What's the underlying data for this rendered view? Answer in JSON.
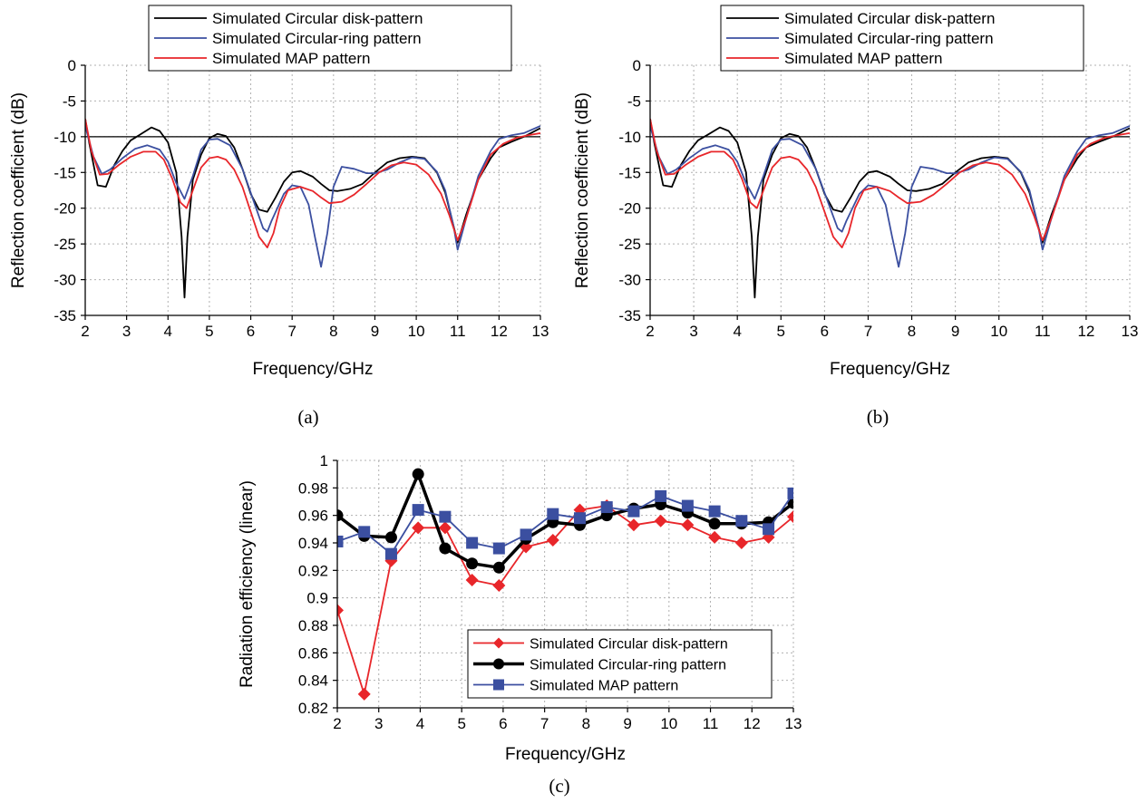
{
  "colors": {
    "disk": "#000000",
    "ring": "#3b4fa0",
    "map": "#e8262a",
    "grid": "#b0b0b0",
    "reference_line": "#000000"
  },
  "chart_data": [
    {
      "panel": "(a)",
      "type": "line",
      "xlabel": "Frequency/GHz",
      "ylabel": "Reflection coefficient (dB)",
      "xlim": [
        2,
        13
      ],
      "ylim": [
        -35,
        0
      ],
      "xticks": [
        2,
        3,
        4,
        5,
        6,
        7,
        8,
        9,
        10,
        11,
        12,
        13
      ],
      "yticks": [
        0,
        -5,
        -10,
        -15,
        -20,
        -25,
        -30,
        -35
      ],
      "grid": true,
      "reference_line": -10,
      "legend_position": "top",
      "series": [
        {
          "name": "Simulated Circular disk-pattern",
          "color_key": "disk",
          "x": [
            2,
            2.1,
            2.3,
            2.5,
            2.7,
            2.9,
            3.1,
            3.3,
            3.6,
            3.8,
            4.0,
            4.2,
            4.33,
            4.4,
            4.47,
            4.6,
            4.8,
            5.0,
            5.2,
            5.4,
            5.6,
            5.8,
            6.0,
            6.2,
            6.4,
            6.6,
            6.8,
            7.0,
            7.2,
            7.5,
            7.7,
            7.9,
            8.1,
            8.4,
            8.7,
            9.0,
            9.3,
            9.6,
            9.9,
            10.2,
            10.5,
            10.7,
            10.9,
            11.0,
            11.2,
            11.5,
            11.8,
            12.0,
            12.3,
            12.6,
            13.0
          ],
          "y": [
            -7.5,
            -11,
            -16.8,
            -17,
            -14,
            -12,
            -10.5,
            -9.8,
            -8.7,
            -9.2,
            -10.8,
            -15,
            -24,
            -32.5,
            -24,
            -16,
            -12.5,
            -10.2,
            -9.6,
            -9.9,
            -11.5,
            -14.5,
            -18,
            -20.2,
            -20.5,
            -18.5,
            -16.3,
            -15,
            -14.8,
            -15.6,
            -16.6,
            -17.5,
            -17.6,
            -17.3,
            -16.6,
            -15,
            -13.6,
            -13,
            -12.8,
            -13,
            -15,
            -17.8,
            -22.5,
            -24.8,
            -21,
            -16,
            -13,
            -11.5,
            -10.7,
            -10,
            -8.8
          ]
        },
        {
          "name": "Simulated Circular-ring pattern",
          "color_key": "ring",
          "x": [
            2,
            2.2,
            2.4,
            2.6,
            2.9,
            3.2,
            3.5,
            3.8,
            4.0,
            4.2,
            4.4,
            4.6,
            4.8,
            5.0,
            5.2,
            5.5,
            5.8,
            6.1,
            6.3,
            6.4,
            6.5,
            6.8,
            7.0,
            7.2,
            7.4,
            7.55,
            7.7,
            7.85,
            8.0,
            8.2,
            8.5,
            8.8,
            9.0,
            9.3,
            9.6,
            9.9,
            10.2,
            10.5,
            10.7,
            10.9,
            11.0,
            11.2,
            11.5,
            11.8,
            12.0,
            12.3,
            12.6,
            13.0
          ],
          "y": [
            -8.5,
            -12.8,
            -15.2,
            -14.6,
            -13,
            -11.7,
            -11.2,
            -11.8,
            -13.5,
            -16.5,
            -18.7,
            -15.5,
            -11.8,
            -10.4,
            -10.3,
            -11.2,
            -14.5,
            -19.5,
            -22.8,
            -23.3,
            -21.8,
            -18,
            -16.8,
            -17,
            -19.5,
            -24,
            -28.2,
            -23.5,
            -17,
            -14.2,
            -14.5,
            -15.1,
            -15.1,
            -14.6,
            -13.6,
            -12.9,
            -13.1,
            -14.9,
            -17.5,
            -22.5,
            -25.8,
            -21.5,
            -15.5,
            -12,
            -10.3,
            -9.8,
            -9.5,
            -8.5
          ]
        },
        {
          "name": "Simulated MAP pattern",
          "color_key": "map",
          "x": [
            2,
            2.15,
            2.35,
            2.55,
            2.8,
            3.1,
            3.4,
            3.7,
            3.9,
            4.1,
            4.3,
            4.45,
            4.6,
            4.8,
            5.0,
            5.2,
            5.4,
            5.6,
            5.8,
            6.0,
            6.2,
            6.4,
            6.55,
            6.7,
            6.9,
            7.2,
            7.5,
            7.7,
            7.9,
            8.2,
            8.5,
            8.8,
            9.1,
            9.4,
            9.7,
            10.0,
            10.3,
            10.6,
            10.8,
            11.0,
            11.2,
            11.5,
            11.8,
            12.1,
            12.4,
            12.7,
            13.0
          ],
          "y": [
            -7.5,
            -12,
            -15.3,
            -15.2,
            -14,
            -12.8,
            -12.1,
            -12.1,
            -13.2,
            -15.8,
            -19.2,
            -20,
            -17.5,
            -14.3,
            -13,
            -12.8,
            -13.2,
            -14.6,
            -17,
            -20.5,
            -24,
            -25.5,
            -23.5,
            -20,
            -17.5,
            -17,
            -17.6,
            -18.5,
            -19.3,
            -19.1,
            -18.1,
            -16.6,
            -15,
            -14,
            -13.6,
            -13.9,
            -15.3,
            -18,
            -21,
            -24.5,
            -21.5,
            -16,
            -12.5,
            -11,
            -10.2,
            -9.8,
            -9.5
          ]
        }
      ]
    },
    {
      "panel": "(b)",
      "type": "line",
      "xlabel": "Frequency/GHz",
      "ylabel": "Reflection coefficient (dB)",
      "xlim": [
        2,
        13
      ],
      "ylim": [
        -35,
        0
      ],
      "xticks": [
        2,
        3,
        4,
        5,
        6,
        7,
        8,
        9,
        10,
        11,
        12,
        13
      ],
      "yticks": [
        0,
        -5,
        -10,
        -15,
        -20,
        -25,
        -30,
        -35
      ],
      "grid": true,
      "reference_line": -10,
      "legend_position": "top",
      "series": [
        {
          "name": "Simulated Circular disk-pattern",
          "color_key": "disk",
          "x": [
            2,
            2.1,
            2.3,
            2.5,
            2.7,
            2.9,
            3.1,
            3.3,
            3.6,
            3.8,
            4.0,
            4.2,
            4.33,
            4.4,
            4.47,
            4.6,
            4.8,
            5.0,
            5.2,
            5.4,
            5.6,
            5.8,
            6.0,
            6.2,
            6.4,
            6.6,
            6.8,
            7.0,
            7.2,
            7.5,
            7.7,
            7.9,
            8.1,
            8.4,
            8.7,
            9.0,
            9.3,
            9.6,
            9.9,
            10.2,
            10.5,
            10.7,
            10.9,
            11.0,
            11.2,
            11.5,
            11.8,
            12.0,
            12.3,
            12.6,
            13.0
          ],
          "y": [
            -7.5,
            -11,
            -16.8,
            -17,
            -14,
            -12,
            -10.5,
            -9.8,
            -8.7,
            -9.2,
            -10.8,
            -15,
            -24,
            -32.5,
            -24,
            -16,
            -12.5,
            -10.2,
            -9.6,
            -9.9,
            -11.5,
            -14.5,
            -18,
            -20.2,
            -20.5,
            -18.5,
            -16.3,
            -15,
            -14.8,
            -15.6,
            -16.6,
            -17.5,
            -17.6,
            -17.3,
            -16.6,
            -15,
            -13.6,
            -13,
            -12.8,
            -13,
            -15,
            -17.8,
            -22.5,
            -24.8,
            -21,
            -16,
            -13,
            -11.5,
            -10.7,
            -10,
            -8.8
          ]
        },
        {
          "name": "Simulated Circular-ring pattern",
          "color_key": "ring",
          "x": [
            2,
            2.2,
            2.4,
            2.6,
            2.9,
            3.2,
            3.5,
            3.8,
            4.0,
            4.2,
            4.4,
            4.6,
            4.8,
            5.0,
            5.2,
            5.5,
            5.8,
            6.1,
            6.3,
            6.4,
            6.5,
            6.8,
            7.0,
            7.2,
            7.4,
            7.55,
            7.7,
            7.85,
            8.0,
            8.2,
            8.5,
            8.8,
            9.0,
            9.3,
            9.6,
            9.9,
            10.2,
            10.5,
            10.7,
            10.9,
            11.0,
            11.2,
            11.5,
            11.8,
            12.0,
            12.3,
            12.6,
            13.0
          ],
          "y": [
            -8.5,
            -12.8,
            -15.2,
            -14.6,
            -13,
            -11.7,
            -11.2,
            -11.8,
            -13.5,
            -16.5,
            -18.7,
            -15.5,
            -11.8,
            -10.4,
            -10.3,
            -11.2,
            -14.5,
            -19.5,
            -22.8,
            -23.3,
            -21.8,
            -18,
            -16.8,
            -17,
            -19.5,
            -24,
            -28.2,
            -23.5,
            -17,
            -14.2,
            -14.5,
            -15.1,
            -15.1,
            -14.6,
            -13.6,
            -12.9,
            -13.1,
            -14.9,
            -17.5,
            -22.5,
            -25.8,
            -21.5,
            -15.5,
            -12,
            -10.3,
            -9.8,
            -9.5,
            -8.5
          ]
        },
        {
          "name": "Simulated MAP pattern",
          "color_key": "map",
          "x": [
            2,
            2.15,
            2.35,
            2.55,
            2.8,
            3.1,
            3.4,
            3.7,
            3.9,
            4.1,
            4.3,
            4.45,
            4.6,
            4.8,
            5.0,
            5.2,
            5.4,
            5.6,
            5.8,
            6.0,
            6.2,
            6.4,
            6.55,
            6.7,
            6.9,
            7.2,
            7.5,
            7.7,
            7.9,
            8.2,
            8.5,
            8.8,
            9.1,
            9.4,
            9.7,
            10.0,
            10.3,
            10.6,
            10.8,
            11.0,
            11.2,
            11.5,
            11.8,
            12.1,
            12.4,
            12.7,
            13.0
          ],
          "y": [
            -7.5,
            -12,
            -15.3,
            -15.2,
            -14,
            -12.8,
            -12.1,
            -12.1,
            -13.2,
            -15.8,
            -19.2,
            -20,
            -17.5,
            -14.3,
            -13,
            -12.8,
            -13.2,
            -14.6,
            -17,
            -20.5,
            -24,
            -25.5,
            -23.5,
            -20,
            -17.5,
            -17,
            -17.6,
            -18.5,
            -19.3,
            -19.1,
            -18.1,
            -16.6,
            -15,
            -14,
            -13.6,
            -13.9,
            -15.3,
            -18,
            -21,
            -24.5,
            -21.5,
            -16,
            -12.5,
            -11,
            -10.2,
            -9.8,
            -9.5
          ]
        }
      ]
    },
    {
      "panel": "(c)",
      "type": "line",
      "xlabel": "Frequency/GHz",
      "ylabel": "Radiation efficiency (linear)",
      "xlim": [
        2,
        13
      ],
      "ylim": [
        0.82,
        1
      ],
      "xticks": [
        2,
        3,
        4,
        5,
        6,
        7,
        8,
        9,
        10,
        11,
        12,
        13
      ],
      "yticks": [
        "1",
        "0.98",
        "0.96",
        "0.94",
        "0.92",
        "0.9",
        "0.88",
        "0.86",
        "0.84",
        "0.82"
      ],
      "grid": true,
      "legend_position": "bottom-right",
      "series": [
        {
          "name": "Simulated Circular disk-pattern",
          "color_key": "map",
          "marker": "diamond",
          "x": [
            2,
            2.65,
            3.3,
            3.95,
            4.6,
            5.25,
            5.9,
            6.55,
            7.2,
            7.85,
            8.5,
            9.15,
            9.8,
            10.45,
            11.1,
            11.75,
            12.4,
            13.0
          ],
          "y": [
            0.891,
            0.83,
            0.927,
            0.951,
            0.951,
            0.913,
            0.909,
            0.937,
            0.942,
            0.964,
            0.967,
            0.953,
            0.956,
            0.953,
            0.944,
            0.94,
            0.944,
            0.959
          ]
        },
        {
          "name": "Simulated Circular-ring pattern",
          "color_key": "disk",
          "marker": "circle",
          "x": [
            2,
            2.65,
            3.3,
            3.95,
            4.6,
            5.25,
            5.9,
            6.55,
            7.2,
            7.85,
            8.5,
            9.15,
            9.8,
            10.45,
            11.1,
            11.75,
            12.4,
            13.0
          ],
          "y": [
            0.96,
            0.945,
            0.944,
            0.99,
            0.936,
            0.925,
            0.922,
            0.943,
            0.955,
            0.953,
            0.96,
            0.965,
            0.968,
            0.962,
            0.954,
            0.954,
            0.955,
            0.969
          ]
        },
        {
          "name": "Simulated MAP pattern",
          "color_key": "ring",
          "marker": "square",
          "x": [
            2,
            2.65,
            3.3,
            3.95,
            4.6,
            5.25,
            5.9,
            6.55,
            7.2,
            7.85,
            8.5,
            9.15,
            9.8,
            10.45,
            11.1,
            11.75,
            12.4,
            13.0
          ],
          "y": [
            0.941,
            0.948,
            0.932,
            0.964,
            0.959,
            0.94,
            0.936,
            0.946,
            0.961,
            0.958,
            0.966,
            0.963,
            0.974,
            0.967,
            0.963,
            0.956,
            0.95,
            0.976
          ]
        }
      ]
    }
  ]
}
